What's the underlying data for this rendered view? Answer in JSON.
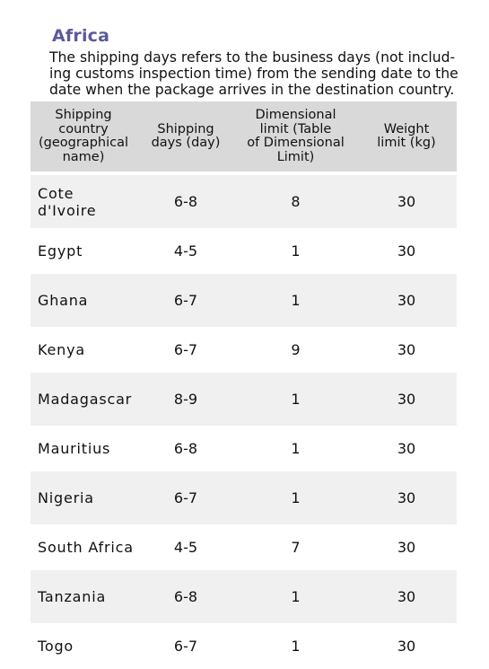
{
  "title": "Africa",
  "description_lines": [
    "The shipping days refers to the business days (not includ-",
    "ing customs inspection time) from the sending date to the",
    "date when the package arrives in the destination country."
  ],
  "table": {
    "headers": [
      "Shipping\ncountry\n(geographical\nname)",
      "Shipping\ndays (day)",
      "Dimensional\nlimit (Table\nof Dimensional\nLimit)",
      "Weight\nlimit (kg)"
    ],
    "rows": [
      {
        "country": "Cote d'Ivoire",
        "days": "6-8",
        "dimensional": "8",
        "weight": "30"
      },
      {
        "country": "Egypt",
        "days": "4-5",
        "dimensional": "1",
        "weight": "30"
      },
      {
        "country": "Ghana",
        "days": "6-7",
        "dimensional": "1",
        "weight": "30"
      },
      {
        "country": "Kenya",
        "days": "6-7",
        "dimensional": "9",
        "weight": "30"
      },
      {
        "country": "Madagascar",
        "days": "8-9",
        "dimensional": "1",
        "weight": "30"
      },
      {
        "country": "Mauritius",
        "days": "6-8",
        "dimensional": "1",
        "weight": "30"
      },
      {
        "country": "Nigeria",
        "days": "6-7",
        "dimensional": "1",
        "weight": "30"
      },
      {
        "country": "South Africa",
        "days": "4-5",
        "dimensional": "7",
        "weight": "30"
      },
      {
        "country": "Tanzania",
        "days": "6-8",
        "dimensional": "1",
        "weight": "30"
      },
      {
        "country": "Togo",
        "days": "6-7",
        "dimensional": "1",
        "weight": "30"
      }
    ]
  },
  "colors": {
    "title": "#5a5a9a",
    "header_bg": "#d9d9d9",
    "row_shade": "#f0f0f0"
  }
}
